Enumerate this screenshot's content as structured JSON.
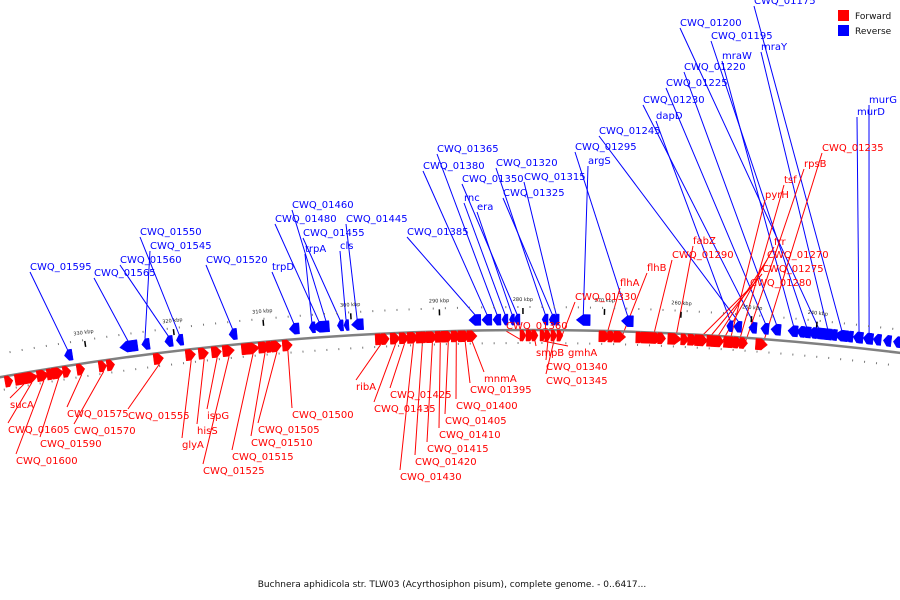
{
  "caption": "Buchnera aphidicola str. TLW03 (Acyrthosiphon pisum), complete genome. - 0..6417...",
  "legend": {
    "forward": {
      "label": "Forward",
      "color": "#ff0000"
    },
    "reverse": {
      "label": "Reverse",
      "color": "#0000ff"
    }
  },
  "backbone_color": "#808080",
  "ticks": [
    {
      "kbp": 330,
      "label": "330 kbp"
    },
    {
      "kbp": 320,
      "label": "320 kbp"
    },
    {
      "kbp": 310,
      "label": "310 kbp"
    },
    {
      "kbp": 300,
      "label": "300 kbp"
    },
    {
      "kbp": 290,
      "label": "290 kbp"
    },
    {
      "kbp": 280,
      "label": "280 kbp"
    },
    {
      "kbp": 270,
      "label": "270 kbp"
    },
    {
      "kbp": 260,
      "label": "260 kbp"
    },
    {
      "kbp": 250,
      "label": "250 kbp"
    },
    {
      "kbp": 240,
      "label": "240 kbp"
    }
  ],
  "reverse_genes": [
    {
      "name": "CWQ_01595"
    },
    {
      "name": "CWQ_01565"
    },
    {
      "name": "CWQ_01560"
    },
    {
      "name": "CWQ_01550"
    },
    {
      "name": "CWQ_01545"
    },
    {
      "name": "CWQ_01520"
    },
    {
      "name": "trpD"
    },
    {
      "name": "CWQ_01480"
    },
    {
      "name": "CWQ_01460"
    },
    {
      "name": "trpA"
    },
    {
      "name": "CWQ_01455"
    },
    {
      "name": "cls"
    },
    {
      "name": "CWQ_01445"
    },
    {
      "name": "CWQ_01385"
    },
    {
      "name": "CWQ_01380"
    },
    {
      "name": "CWQ_01365"
    },
    {
      "name": "rnc"
    },
    {
      "name": "era"
    },
    {
      "name": "CWQ_01350"
    },
    {
      "name": "CWQ_01320"
    },
    {
      "name": "CWQ_01325"
    },
    {
      "name": "CWQ_01315"
    },
    {
      "name": "argS"
    },
    {
      "name": "CWQ_01295"
    },
    {
      "name": "CWQ_01245"
    },
    {
      "name": "dapD"
    },
    {
      "name": "CWQ_01230"
    },
    {
      "name": "CWQ_01225"
    },
    {
      "name": "CWQ_01220"
    },
    {
      "name": "mraW"
    },
    {
      "name": "CWQ_01195"
    },
    {
      "name": "CWQ_01200"
    },
    {
      "name": "mraY"
    },
    {
      "name": "CWQ_01175"
    },
    {
      "name": "murD"
    },
    {
      "name": "murG"
    }
  ],
  "forward_genes": [
    {
      "name": "sucA"
    },
    {
      "name": "CWQ_01605"
    },
    {
      "name": "CWQ_01600"
    },
    {
      "name": "CWQ_01590"
    },
    {
      "name": "CWQ_01575"
    },
    {
      "name": "CWQ_01570"
    },
    {
      "name": "CWQ_01555"
    },
    {
      "name": "glyA"
    },
    {
      "name": "hisS"
    },
    {
      "name": "ispG"
    },
    {
      "name": "CWQ_01525"
    },
    {
      "name": "CWQ_01515"
    },
    {
      "name": "CWQ_01510"
    },
    {
      "name": "CWQ_01505"
    },
    {
      "name": "CWQ_01500"
    },
    {
      "name": "ribA"
    },
    {
      "name": "CWQ_01435"
    },
    {
      "name": "CWQ_01425"
    },
    {
      "name": "CWQ_01430"
    },
    {
      "name": "CWQ_01420"
    },
    {
      "name": "CWQ_01415"
    },
    {
      "name": "CWQ_01410"
    },
    {
      "name": "CWQ_01405"
    },
    {
      "name": "CWQ_01400"
    },
    {
      "name": "CWQ_01395"
    },
    {
      "name": "mnmA"
    },
    {
      "name": "CWQ_01360"
    },
    {
      "name": "smpB"
    },
    {
      "name": "gmhA"
    },
    {
      "name": "CWQ_01340"
    },
    {
      "name": "CWQ_01345"
    },
    {
      "name": "CWQ_01330"
    },
    {
      "name": "flhA"
    },
    {
      "name": "flhB"
    },
    {
      "name": "CWQ_01290"
    },
    {
      "name": "fabZ"
    },
    {
      "name": "CWQ_01280"
    },
    {
      "name": "CWQ_01275"
    },
    {
      "name": "CWQ_01270"
    },
    {
      "name": "frr"
    },
    {
      "name": "pyrH"
    },
    {
      "name": "tsf"
    },
    {
      "name": "rpsB"
    },
    {
      "name": "CWQ_01235"
    }
  ]
}
